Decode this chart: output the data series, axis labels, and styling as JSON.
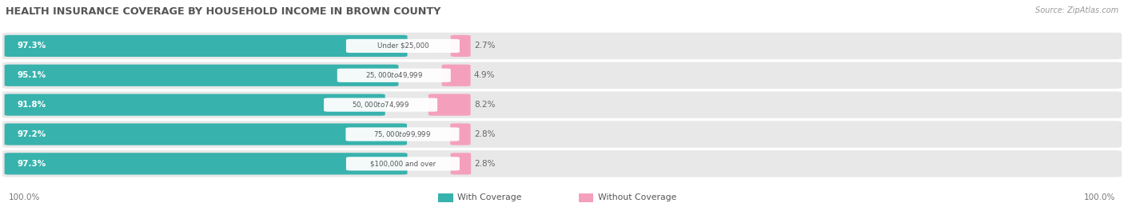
{
  "title": "HEALTH INSURANCE COVERAGE BY HOUSEHOLD INCOME IN BROWN COUNTY",
  "source": "Source: ZipAtlas.com",
  "categories": [
    "Under $25,000",
    "$25,000 to $49,999",
    "$50,000 to $74,999",
    "$75,000 to $99,999",
    "$100,000 and over"
  ],
  "with_coverage": [
    97.3,
    95.1,
    91.8,
    97.2,
    97.3
  ],
  "without_coverage": [
    2.7,
    4.9,
    8.2,
    2.8,
    2.8
  ],
  "color_with": "#38b2ad",
  "color_without": "#f4a0bc",
  "title_color": "#555555",
  "pct_color_right": "#666666",
  "category_label_color": "#555555",
  "fig_bg": "#ffffff",
  "legend_with": "With Coverage",
  "legend_without": "Without Coverage",
  "xlim_left_label": "100.0%",
  "xlim_right_label": "100.0%",
  "bar_bg_color": "#e8e8e8",
  "note": "The bar scale: 100% data maps to ~37% of bar_area_width. Label box is at junction. Pink bar follows label."
}
